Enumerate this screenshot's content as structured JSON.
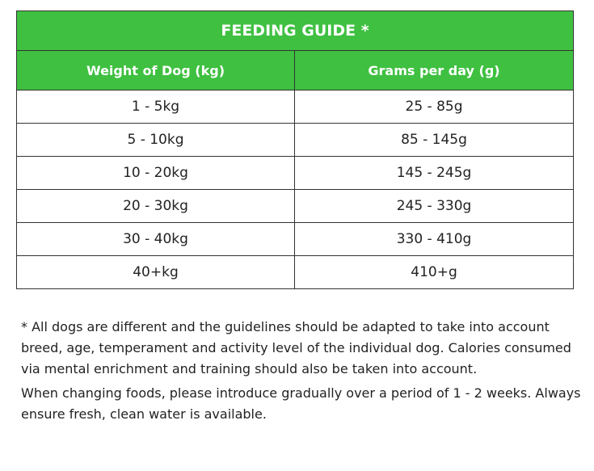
{
  "colors": {
    "header_bg": "#3fc041",
    "header_text": "#ffffff",
    "border": "#333333",
    "body_text": "#222222"
  },
  "table": {
    "title": "FEEDING GUIDE *",
    "columns": [
      "Weight of Dog (kg)",
      "Grams per day (g)"
    ],
    "rows": [
      [
        "1 - 5kg",
        "25 - 85g"
      ],
      [
        "5 - 10kg",
        "85 - 145g"
      ],
      [
        "10 - 20kg",
        "145 - 245g"
      ],
      [
        "20 - 30kg",
        "245 - 330g"
      ],
      [
        "30 - 40kg",
        "330 - 410g"
      ],
      [
        "40+kg",
        "410+g"
      ]
    ]
  },
  "notes": {
    "disclaimer": "* All dogs are different and the guidelines should be adapted to take into account breed, age, temperament and activity level of the individual dog. Calories consumed via mental enrichment and training should also be taken into account.",
    "advice": "When changing foods, please introduce gradually over a period of 1 - 2 weeks. Always ensure fresh, clean water is available."
  }
}
